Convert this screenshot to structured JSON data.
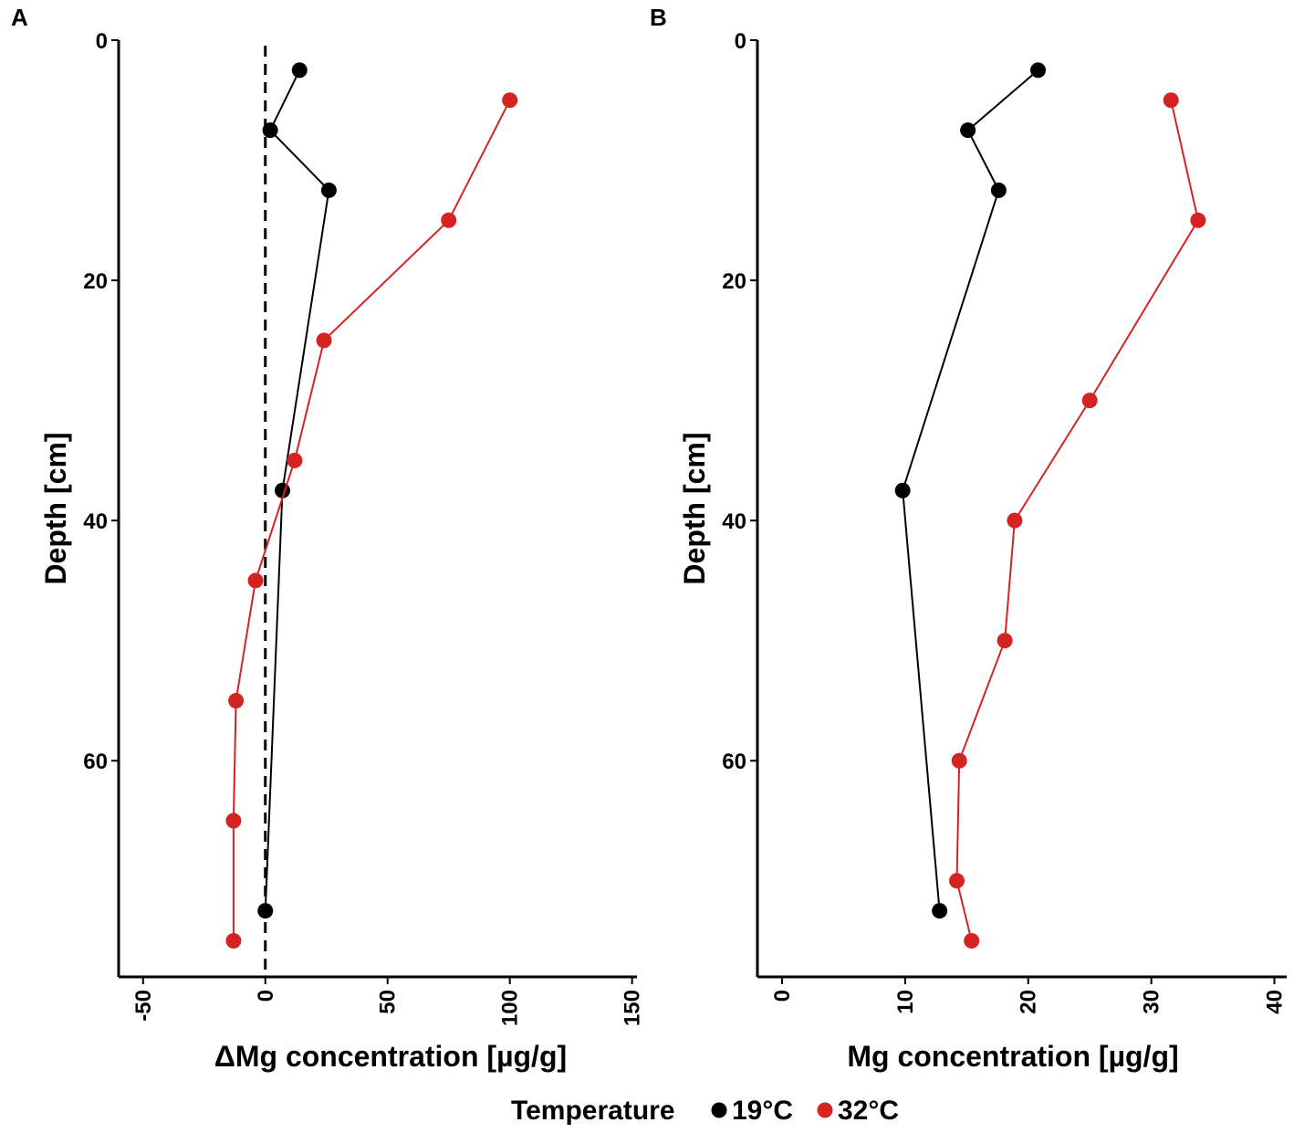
{
  "chart_data": [
    {
      "panel": "A",
      "type": "line",
      "xlabel": "ΔMg concentration [µg/g]",
      "ylabel": "Depth [cm]",
      "xlim": [
        -60,
        152
      ],
      "ylim": [
        0,
        78
      ],
      "y_reversed": true,
      "xticks": [
        -50,
        0,
        50,
        100,
        150
      ],
      "yticks": [
        0,
        20,
        40,
        60
      ],
      "reference_line": {
        "x": 0,
        "style": "dashed"
      },
      "grid": false,
      "series": [
        {
          "name": "19°C",
          "color": "#000000",
          "points": [
            [
              14,
              2.5
            ],
            [
              2,
              7.5
            ],
            [
              26,
              12.5
            ],
            [
              7,
              37.5
            ],
            [
              0,
              72.5
            ]
          ]
        },
        {
          "name": "32°C",
          "color": "#d42323",
          "points": [
            [
              100,
              5
            ],
            [
              75,
              15
            ],
            [
              24,
              25
            ],
            [
              12,
              35
            ],
            [
              -4,
              45
            ],
            [
              -12,
              55
            ],
            [
              -13,
              65
            ],
            [
              -13,
              75
            ]
          ]
        }
      ]
    },
    {
      "panel": "B",
      "type": "line",
      "xlabel": "Mg concentration [µg/g]",
      "ylabel": "Depth [cm]",
      "xlim": [
        -2,
        41
      ],
      "ylim": [
        0,
        78
      ],
      "y_reversed": true,
      "xticks": [
        0,
        10,
        20,
        30,
        40
      ],
      "yticks": [
        0,
        20,
        40,
        60
      ],
      "grid": false,
      "series": [
        {
          "name": "19°C",
          "color": "#000000",
          "points": [
            [
              20.8,
              2.5
            ],
            [
              15.1,
              7.5
            ],
            [
              17.6,
              12.5
            ],
            [
              9.8,
              37.5
            ],
            [
              12.8,
              72.5
            ]
          ]
        },
        {
          "name": "32°C",
          "color": "#d42323",
          "points": [
            [
              31.6,
              5
            ],
            [
              33.8,
              15
            ],
            [
              25,
              30
            ],
            [
              18.9,
              40
            ],
            [
              18.1,
              50
            ],
            [
              14.4,
              60
            ],
            [
              14.2,
              70
            ],
            [
              15.4,
              75
            ]
          ]
        }
      ]
    }
  ],
  "legend": {
    "title": "Temperature",
    "position": "bottom",
    "items": [
      {
        "label": "19°C",
        "color": "#000000"
      },
      {
        "label": "32°C",
        "color": "#d42323"
      }
    ]
  }
}
